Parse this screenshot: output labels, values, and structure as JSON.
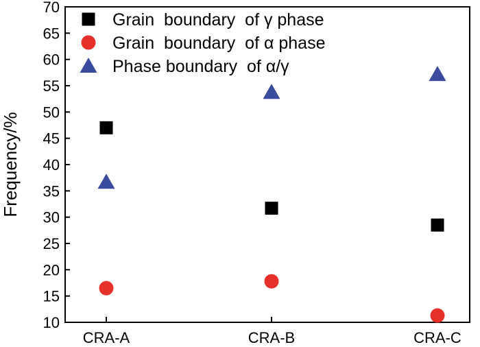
{
  "chart_data": {
    "type": "scatter",
    "categories": [
      "CRA-A",
      "CRA-B",
      "CRA-C"
    ],
    "ylabel": "Frequency/%",
    "xlabel": "",
    "ylim": [
      10,
      70
    ],
    "yticks": [
      10,
      15,
      20,
      25,
      30,
      35,
      40,
      45,
      50,
      55,
      60,
      65,
      70
    ],
    "grid": false,
    "legend_position": "top-left",
    "series": [
      {
        "name": "Grain  boundary  of γ phase",
        "marker": "square",
        "color": "#000000",
        "values": [
          47,
          31.7,
          28.5
        ]
      },
      {
        "name": "Grain  boundary  of α phase",
        "marker": "circle",
        "color": "#e8302a",
        "values": [
          16.5,
          17.8,
          11.3
        ]
      },
      {
        "name": "Phase boundary  of α/γ",
        "marker": "triangle",
        "color": "#3a4a9c",
        "values": [
          36.7,
          53.8,
          57.2
        ]
      }
    ]
  }
}
